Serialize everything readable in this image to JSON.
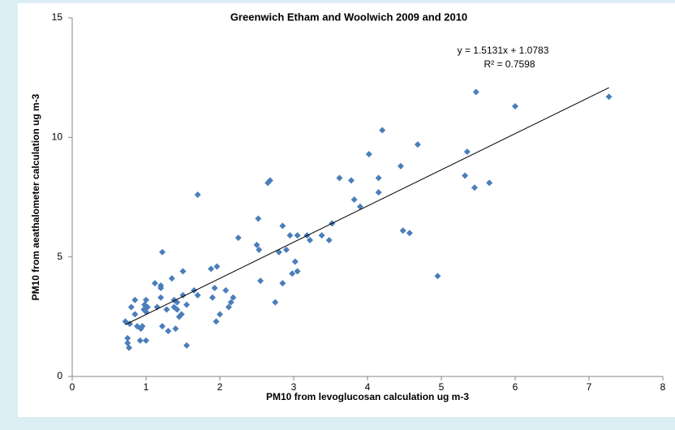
{
  "chart_data": {
    "type": "scatter",
    "title": "Greenwich Etham and Woolwich 2009 and 2010",
    "x_label": "PM10 from levoglucosan calculation ug m-3",
    "y_label": "PM10 from aeathalometer calculation ug m-3",
    "color": "#4a7ebb",
    "x": [
      0.72,
      0.75,
      0.75,
      0.77,
      0.78,
      0.8,
      0.85,
      0.85,
      0.88,
      0.92,
      0.93,
      0.95,
      0.97,
      0.98,
      1.0,
      1.0,
      1.0,
      1.02,
      1.12,
      1.15,
      1.2,
      1.2,
      1.2,
      1.22,
      1.22,
      1.28,
      1.3,
      1.35,
      1.38,
      1.38,
      1.4,
      1.42,
      1.42,
      1.45,
      1.48,
      1.5,
      1.5,
      1.55,
      1.55,
      1.65,
      1.7,
      1.7,
      1.88,
      1.9,
      1.93,
      1.95,
      1.96,
      2.0,
      2.08,
      2.12,
      2.15,
      2.18,
      2.25,
      2.5,
      2.52,
      2.53,
      2.55,
      2.65,
      2.68,
      2.75,
      2.8,
      2.85,
      2.85,
      2.9,
      2.95,
      2.98,
      3.02,
      3.05,
      3.05,
      3.18,
      3.22,
      3.38,
      3.48,
      3.52,
      3.62,
      3.78,
      3.82,
      3.9,
      4.02,
      4.15,
      4.15,
      4.2,
      4.45,
      4.48,
      4.57,
      4.68,
      4.95,
      5.32,
      5.35,
      5.45,
      5.47,
      5.65,
      6.0,
      7.27
    ],
    "values": [
      2.3,
      1.6,
      1.4,
      1.2,
      2.2,
      2.9,
      3.2,
      2.6,
      2.1,
      1.5,
      2.0,
      2.1,
      2.8,
      3.0,
      3.2,
      2.7,
      1.5,
      2.9,
      3.9,
      2.9,
      3.7,
      3.3,
      3.8,
      2.1,
      5.2,
      2.8,
      1.9,
      4.1,
      3.2,
      2.9,
      2.0,
      3.1,
      2.8,
      2.5,
      2.6,
      4.4,
      3.4,
      1.3,
      3.0,
      3.6,
      3.4,
      7.6,
      4.5,
      3.3,
      3.7,
      2.3,
      4.6,
      2.6,
      3.6,
      2.9,
      3.1,
      3.3,
      5.8,
      5.5,
      6.6,
      5.3,
      4.0,
      8.1,
      8.2,
      3.1,
      5.2,
      3.9,
      6.3,
      5.3,
      5.9,
      4.3,
      4.8,
      4.4,
      5.9,
      5.9,
      5.7,
      5.9,
      5.7,
      6.4,
      8.3,
      8.2,
      7.4,
      7.1,
      9.3,
      8.3,
      7.7,
      10.3,
      8.8,
      6.1,
      6.0,
      9.7,
      4.2,
      8.4,
      9.4,
      7.9,
      11.9,
      8.1,
      11.3,
      11.7
    ],
    "trendline": {
      "slope": 1.5131,
      "intercept": 1.0783,
      "equation": "y = 1.5131x + 1.0783",
      "r2": "R² = 0.7598"
    },
    "xlim": [
      0,
      8
    ],
    "xticks": [
      0,
      1,
      2,
      3,
      4,
      5,
      6,
      7,
      8
    ],
    "ylim": [
      0,
      15
    ],
    "yticks": [
      0,
      5,
      10,
      15
    ]
  }
}
